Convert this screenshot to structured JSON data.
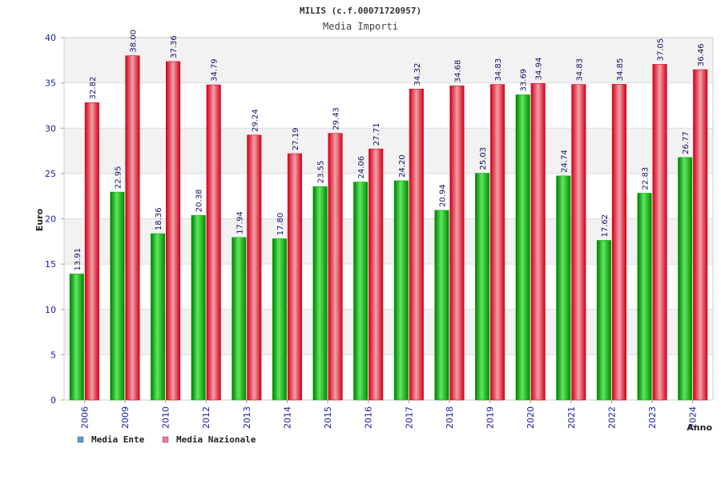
{
  "chart_data": {
    "type": "bar",
    "title": "MILIS (c.f.00071720957)",
    "subtitle": "Media Importi",
    "xlabel": "Anno",
    "ylabel": "Euro",
    "ylim": [
      0,
      40
    ],
    "yticks": [
      0,
      5,
      10,
      15,
      20,
      25,
      30,
      35,
      40
    ],
    "categories": [
      "2006",
      "2009",
      "2010",
      "2012",
      "2013",
      "2014",
      "2015",
      "2016",
      "2017",
      "2018",
      "2019",
      "2020",
      "2021",
      "2022",
      "2023",
      "2024"
    ],
    "series": [
      {
        "name": "Media Ente",
        "color": "#00b400",
        "values": [
          13.91,
          22.95,
          18.36,
          20.38,
          17.94,
          17.8,
          23.55,
          24.06,
          24.2,
          20.94,
          25.03,
          33.69,
          24.74,
          17.62,
          22.83,
          26.77
        ],
        "labels": [
          "13.91",
          "22.95",
          "18.36",
          "20.38",
          "17.94",
          "17.80",
          "23.55",
          "24.06",
          "24.20",
          "20.94",
          "25.03",
          "33.69",
          "24.74",
          "17.62",
          "22.83",
          "26.77"
        ]
      },
      {
        "name": "Media Nazionale",
        "color": "#e8001c",
        "values": [
          32.82,
          38.0,
          37.36,
          34.79,
          29.24,
          27.19,
          29.43,
          27.71,
          34.32,
          34.68,
          34.83,
          34.94,
          34.83,
          34.85,
          37.05,
          36.46
        ],
        "labels": [
          "32.82",
          "38.00",
          "37.36",
          "34.79",
          "29.24",
          "27.19",
          "29.43",
          "27.71",
          "34.32",
          "34.68",
          "34.83",
          "34.94",
          "34.83",
          "34.85",
          "37.05",
          "36.46"
        ]
      }
    ],
    "legend": {
      "position": "bottom-left",
      "items": [
        {
          "label": "Media Ente",
          "swatch_color": "#5b9bd5"
        },
        {
          "label": "Media Nazionale",
          "swatch_color": "#e87aa8"
        }
      ]
    },
    "grid": true,
    "band_colors": [
      "#ffffff",
      "#f2f2f2"
    ],
    "tick_color": "#1a1aa6"
  }
}
